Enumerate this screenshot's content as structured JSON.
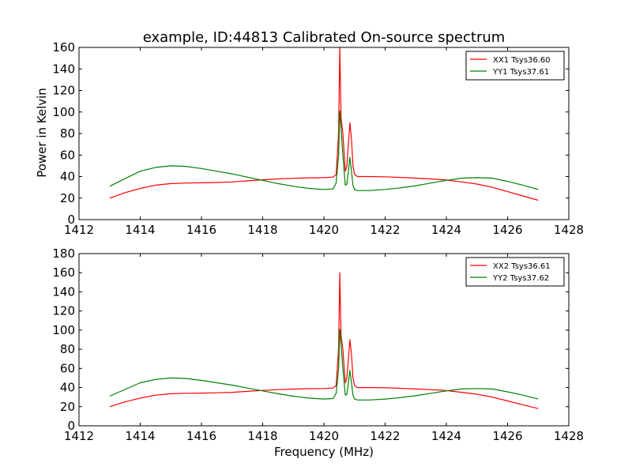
{
  "chart_data": [
    {
      "type": "line",
      "title": "example, ID:44813 Calibrated On-source spectrum",
      "xlabel": "",
      "ylabel": "Power in Kelvin",
      "xlim": [
        1412,
        1428
      ],
      "ylim": [
        0,
        160
      ],
      "xticks": [
        "1412",
        "1414",
        "1416",
        "1418",
        "1420",
        "1422",
        "1424",
        "1426",
        "1428"
      ],
      "yticks": [
        "0",
        "20",
        "40",
        "60",
        "80",
        "100",
        "120",
        "140",
        "160"
      ],
      "legend_position": "top-right",
      "series": [
        {
          "name": "XX1 Tsys36.60",
          "color": "#ff0000",
          "x": [
            1413.0,
            1413.5,
            1414.0,
            1414.5,
            1415.0,
            1415.5,
            1416.0,
            1416.5,
            1417.0,
            1417.5,
            1418.0,
            1418.5,
            1419.0,
            1419.5,
            1420.0,
            1420.3,
            1420.4,
            1420.48,
            1420.52,
            1420.56,
            1420.62,
            1420.7,
            1420.75,
            1420.8,
            1420.85,
            1420.9,
            1420.95,
            1421.0,
            1421.1,
            1421.3,
            1421.5,
            1422.0,
            1422.5,
            1423.0,
            1423.5,
            1424.0,
            1424.5,
            1425.0,
            1425.5,
            1426.0,
            1426.5,
            1427.0
          ],
          "y": [
            20,
            25,
            29,
            32,
            33.5,
            34,
            34.2,
            34.5,
            35,
            36,
            37,
            37.8,
            38.4,
            38.8,
            39,
            39.5,
            42,
            80,
            160,
            95,
            80,
            45,
            50,
            70,
            90,
            75,
            50,
            42,
            40,
            40,
            40,
            39.8,
            39.2,
            38.5,
            37.8,
            36.8,
            35,
            33,
            30,
            26,
            22,
            18
          ]
        },
        {
          "name": "YY1 Tsys37.61",
          "color": "#008000",
          "x": [
            1413.0,
            1413.5,
            1414.0,
            1414.5,
            1415.0,
            1415.5,
            1416.0,
            1416.5,
            1417.0,
            1417.5,
            1418.0,
            1418.5,
            1419.0,
            1419.5,
            1420.0,
            1420.3,
            1420.4,
            1420.48,
            1420.52,
            1420.56,
            1420.62,
            1420.7,
            1420.75,
            1420.8,
            1420.85,
            1420.9,
            1420.95,
            1421.0,
            1421.1,
            1421.3,
            1421.5,
            1422.0,
            1422.5,
            1423.0,
            1423.5,
            1424.0,
            1424.5,
            1425.0,
            1425.5,
            1426.0,
            1426.5,
            1427.0
          ],
          "y": [
            31,
            38,
            45,
            48.5,
            50,
            49.5,
            47.5,
            45,
            42.5,
            39.5,
            36.5,
            33.5,
            31,
            29,
            28,
            28.5,
            34,
            60,
            101,
            85,
            60,
            32,
            33,
            45,
            58,
            45,
            32,
            28,
            27,
            27,
            27,
            28,
            29.5,
            31.5,
            34,
            36.5,
            38.5,
            39,
            38.5,
            35.5,
            32,
            28
          ]
        }
      ]
    },
    {
      "type": "line",
      "title": "",
      "xlabel": "Frequency (MHz)",
      "ylabel": "",
      "xlim": [
        1412,
        1428
      ],
      "ylim": [
        0,
        180
      ],
      "xticks": [
        "1412",
        "1414",
        "1416",
        "1418",
        "1420",
        "1422",
        "1424",
        "1426",
        "1428"
      ],
      "yticks": [
        "0",
        "20",
        "40",
        "60",
        "80",
        "100",
        "120",
        "140",
        "160",
        "180"
      ],
      "legend_position": "top-right",
      "series": [
        {
          "name": "XX2 Tsys36.61",
          "color": "#ff0000",
          "x": [
            1413.0,
            1413.5,
            1414.0,
            1414.5,
            1415.0,
            1415.5,
            1416.0,
            1416.5,
            1417.0,
            1417.5,
            1418.0,
            1418.5,
            1419.0,
            1419.5,
            1420.0,
            1420.3,
            1420.4,
            1420.48,
            1420.52,
            1420.56,
            1420.62,
            1420.7,
            1420.75,
            1420.8,
            1420.85,
            1420.9,
            1420.95,
            1421.0,
            1421.1,
            1421.3,
            1421.5,
            1422.0,
            1422.5,
            1423.0,
            1423.5,
            1424.0,
            1424.5,
            1425.0,
            1425.5,
            1426.0,
            1426.5,
            1427.0
          ],
          "y": [
            20,
            25,
            29,
            32,
            33.5,
            34,
            34.2,
            34.5,
            35,
            36,
            37,
            37.8,
            38.4,
            38.8,
            39,
            39.5,
            42,
            80,
            160,
            95,
            80,
            45,
            50,
            70,
            90,
            75,
            50,
            42,
            40,
            40,
            40,
            39.8,
            39.2,
            38.5,
            37.8,
            36.8,
            35,
            33,
            30,
            26,
            22,
            18
          ]
        },
        {
          "name": "YY2 Tsys37.62",
          "color": "#008000",
          "x": [
            1413.0,
            1413.5,
            1414.0,
            1414.5,
            1415.0,
            1415.5,
            1416.0,
            1416.5,
            1417.0,
            1417.5,
            1418.0,
            1418.5,
            1419.0,
            1419.5,
            1420.0,
            1420.3,
            1420.4,
            1420.48,
            1420.52,
            1420.56,
            1420.62,
            1420.7,
            1420.75,
            1420.8,
            1420.85,
            1420.9,
            1420.95,
            1421.0,
            1421.1,
            1421.3,
            1421.5,
            1422.0,
            1422.5,
            1423.0,
            1423.5,
            1424.0,
            1424.5,
            1425.0,
            1425.5,
            1426.0,
            1426.5,
            1427.0
          ],
          "y": [
            31,
            38,
            45,
            48.5,
            50,
            49.5,
            47.5,
            45,
            42.5,
            39.5,
            36.5,
            33.5,
            31,
            29,
            28,
            28.5,
            34,
            60,
            101,
            85,
            60,
            32,
            33,
            45,
            58,
            45,
            32,
            28,
            27,
            27,
            27,
            28,
            29.5,
            31.5,
            34,
            36.5,
            38.5,
            39,
            38.5,
            35.5,
            32,
            28
          ]
        }
      ]
    }
  ]
}
